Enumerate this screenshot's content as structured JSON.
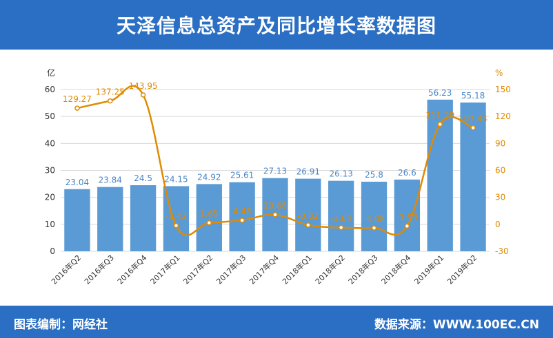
{
  "title": "天泽信息总资产及同比增长率数据图",
  "footer": {
    "left": "图表编制：网经社",
    "right": "数据来源：WWW.100EC.CN"
  },
  "colors": {
    "header_bg": "#2a6fc3",
    "bar": "#5b9bd5",
    "line": "#e08a00",
    "bar_label": "#4a86c8"
  },
  "chart_data": {
    "type": "bar",
    "categories": [
      "2016年Q2",
      "2016年Q3",
      "2016年Q4",
      "2017年Q1",
      "2017年Q2",
      "2017年Q3",
      "2017年Q4",
      "2018年Q1",
      "2018年Q2",
      "2018年Q3",
      "2018年Q4",
      "2019年Q1",
      "2019年Q2"
    ],
    "series": [
      {
        "type": "bar",
        "axis": "left",
        "values": [
          23.04,
          23.84,
          24.5,
          24.15,
          24.92,
          25.61,
          27.13,
          26.91,
          26.13,
          25.8,
          26.6,
          56.23,
          55.18
        ],
        "labels": [
          "23.04",
          "23.84",
          "24.5",
          "24.15",
          "24.92",
          "25.61",
          "27.13",
          "26.91",
          "26.13",
          "25.8",
          "26.6",
          "56.23",
          "55.18"
        ]
      },
      {
        "type": "line",
        "axis": "right",
        "values": [
          129.27,
          137.25,
          143.95,
          -1.42,
          1.65,
          4.48,
          10.68,
          -0.82,
          -3.64,
          -4.08,
          -1.99,
          111.29,
          107.44
        ],
        "labels": [
          "129.27",
          "137.25",
          "143.95",
          "-1.42",
          "1.65",
          "4.48",
          "10.68",
          "-0.82",
          "-3.64",
          "-4.08",
          "-1.99",
          "111.29",
          "107.44"
        ]
      }
    ],
    "yleft": {
      "unit": "亿",
      "range": [
        0,
        60
      ],
      "ticks": [
        "0",
        "10",
        "20",
        "30",
        "40",
        "50",
        "60"
      ]
    },
    "yright": {
      "unit": "%",
      "range": [
        -30,
        150
      ],
      "ticks": [
        "-30",
        "0",
        "30",
        "60",
        "90",
        "120",
        "150"
      ]
    },
    "grid": true
  }
}
